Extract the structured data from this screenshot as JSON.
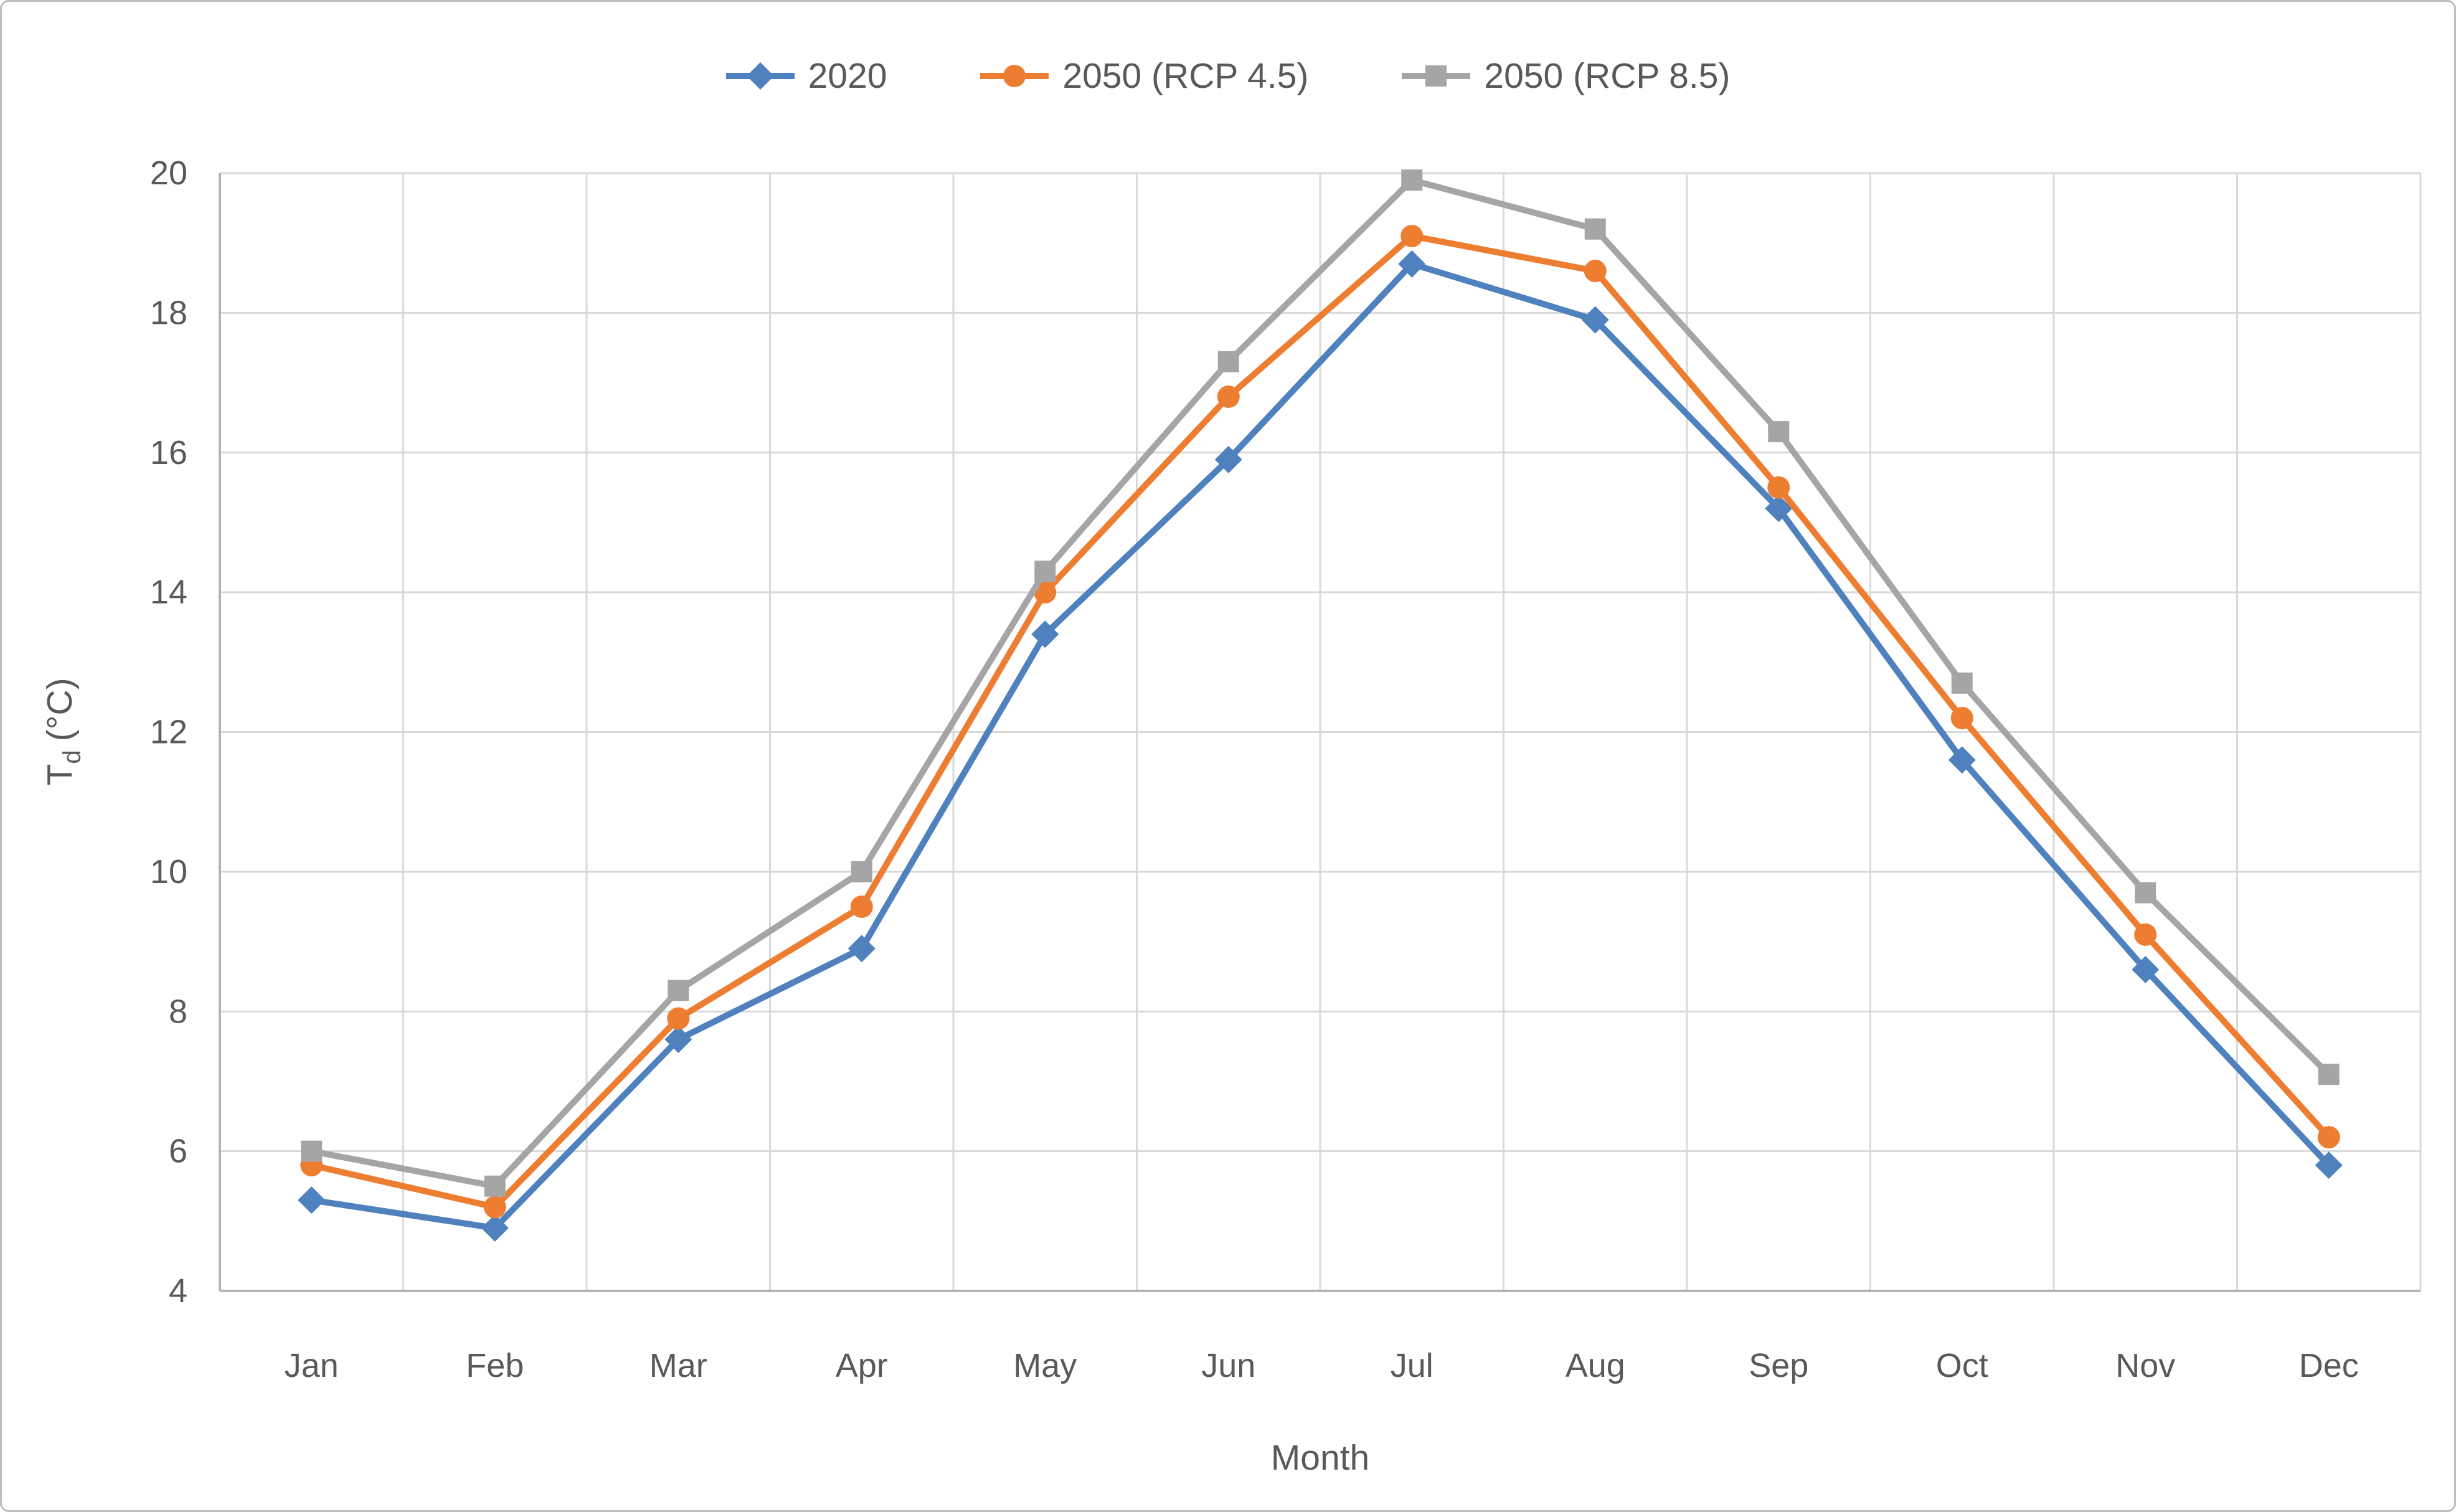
{
  "figure": {
    "background": "#ffffff",
    "border_color": "#bdbdbd"
  },
  "chart_data": {
    "type": "line",
    "title": "",
    "xlabel": "Month",
    "ylabel": "Td (°C)",
    "ylabel_parts": {
      "main": "T",
      "sub": "d",
      "unit": "(°C)"
    },
    "categories": [
      "Jan",
      "Feb",
      "Mar",
      "Apr",
      "May",
      "Jun",
      "Jul",
      "Aug",
      "Sep",
      "Oct",
      "Nov",
      "Dec"
    ],
    "series": [
      {
        "name": "2020",
        "color": "#4e81bd",
        "marker": "diamond",
        "values": [
          5.3,
          4.9,
          7.6,
          8.9,
          13.4,
          15.9,
          18.7,
          17.9,
          15.2,
          11.6,
          8.6,
          5.8
        ]
      },
      {
        "name": "2050 (RCP 4.5)",
        "color": "#ed7d31",
        "marker": "circle",
        "values": [
          5.8,
          5.2,
          7.9,
          9.5,
          14.0,
          16.8,
          19.1,
          18.6,
          15.5,
          12.2,
          9.1,
          6.2
        ]
      },
      {
        "name": "2050 (RCP 8.5)",
        "color": "#a5a5a5",
        "marker": "square",
        "values": [
          6.0,
          5.5,
          8.3,
          10.0,
          14.3,
          17.3,
          19.9,
          19.2,
          16.3,
          12.7,
          9.7,
          7.1
        ]
      }
    ],
    "ylim": [
      4,
      20
    ],
    "ytick_step": 2,
    "yticks": [
      4,
      6,
      8,
      10,
      12,
      14,
      16,
      18,
      20
    ],
    "grid": true,
    "legend_position": "top",
    "axis_text_color": "#595959",
    "gridline_color": "#d9d9d9",
    "axis_line_color": "#b3b3b3"
  }
}
